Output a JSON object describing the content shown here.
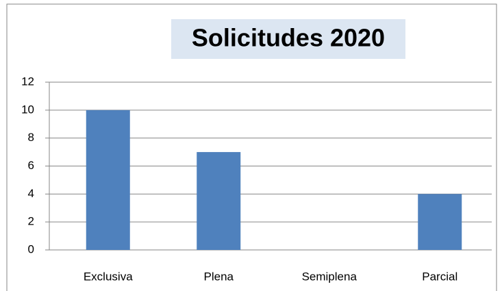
{
  "chart_data": {
    "type": "bar",
    "title": "Solicitudes 2020",
    "categories": [
      "Exclusiva",
      "Plena",
      "Semiplena",
      "Parcial"
    ],
    "values": [
      10,
      7,
      0,
      4
    ],
    "color": "#4f81bd",
    "ylim": [
      0,
      12
    ],
    "yticks": [
      0,
      2,
      4,
      6,
      8,
      10,
      12
    ],
    "grid": true
  }
}
